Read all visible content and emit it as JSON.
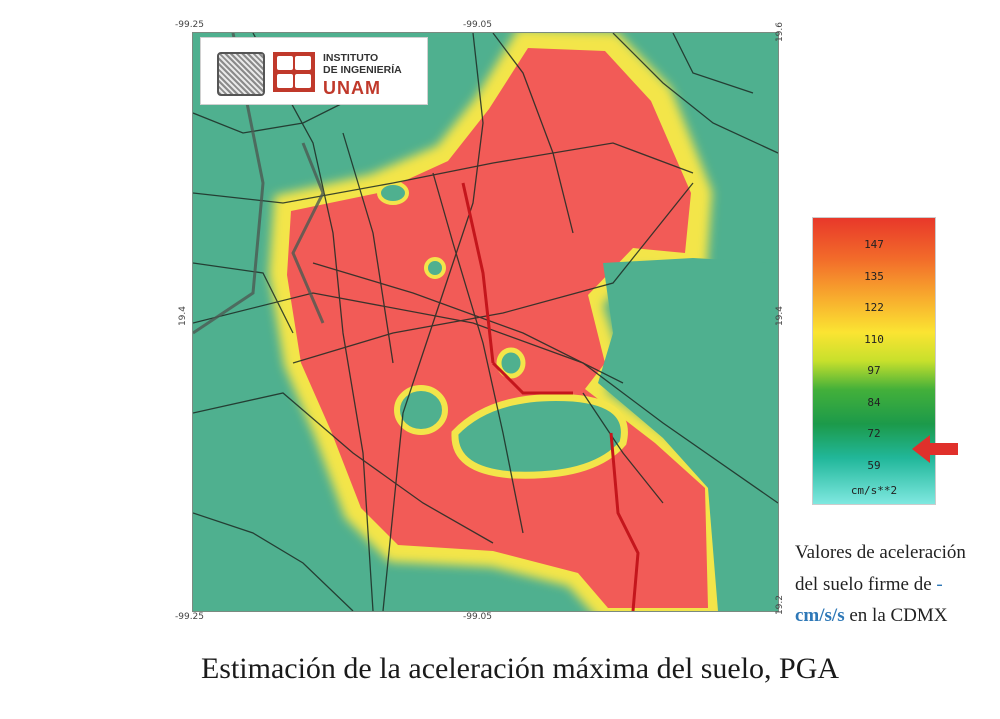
{
  "map": {
    "coord_top_left": "-99.25",
    "coord_top_mid": "-99.05",
    "coord_top_right": "19.6",
    "coord_left_mid": "19.4",
    "coord_right_mid": "19.4",
    "coord_bottom_left": "-99.25",
    "coord_bottom_mid": "-99.05",
    "coord_bottom_right": "19.2",
    "colors": {
      "low": "#4fb08f",
      "high": "#f25b57",
      "edge": "#f3e54a",
      "road": "#1d2b24"
    }
  },
  "logo": {
    "institute_line1": "INSTITUTO",
    "institute_line2": "DE INGENIERÍA",
    "institute_line3": "UNAM"
  },
  "scale": {
    "values": [
      "147",
      "135",
      "122",
      "110",
      "97",
      "84",
      "72",
      "59"
    ],
    "unit": "cm/s**2",
    "indicator_value": "72",
    "indicator_color": "#e0302b"
  },
  "side_note": {
    "line1": "Valores de aceleración",
    "line2": "del suelo firme de ",
    "line3_a": "cm/s/s",
    "line3_b": " en la CDMX"
  },
  "caption": "Estimación de la aceleración máxima del suelo, PGA"
}
